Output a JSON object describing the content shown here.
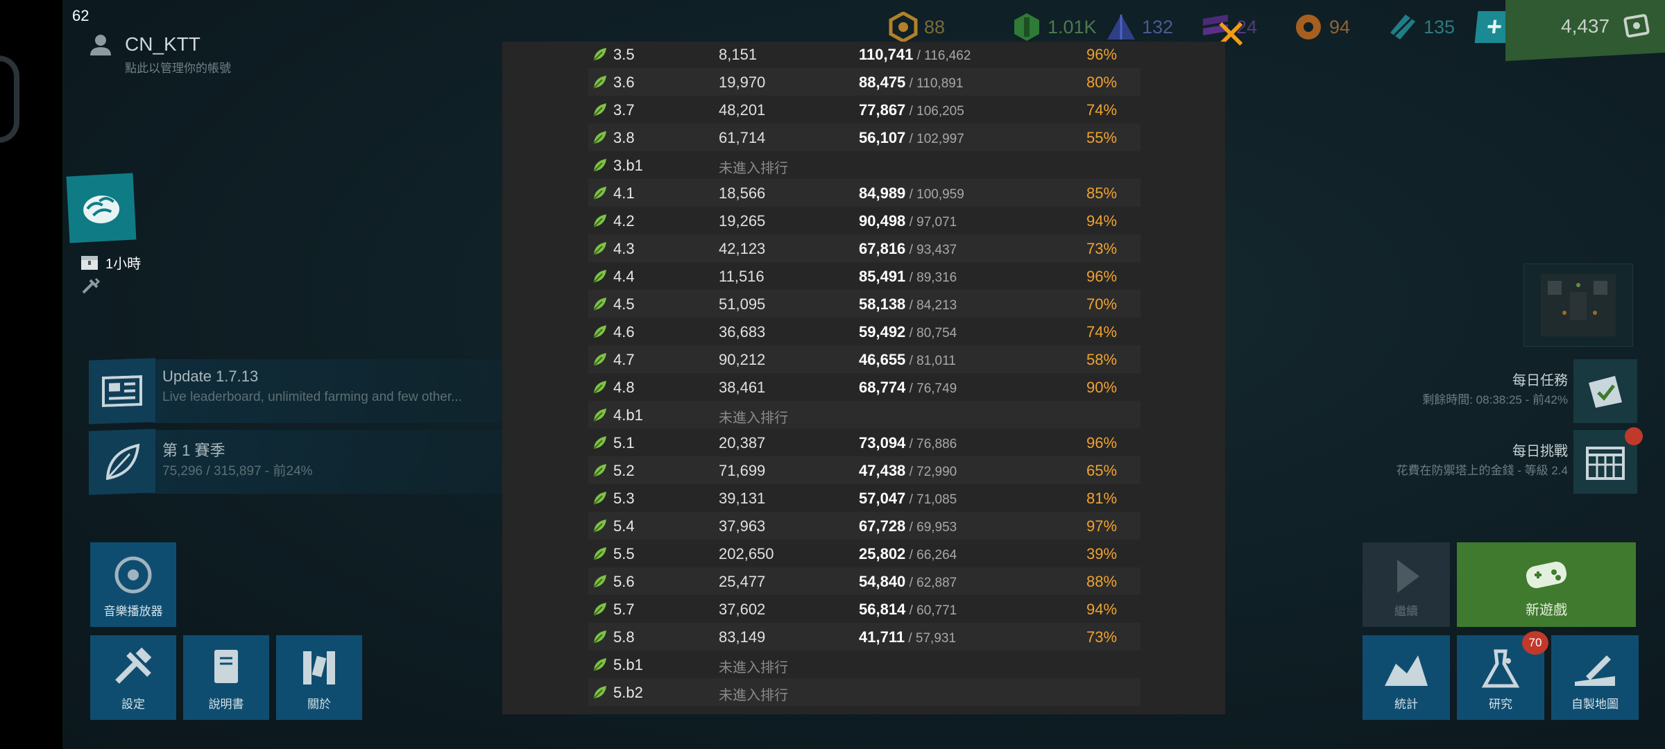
{
  "fps": "62",
  "profile": {
    "name": "CN_KTT",
    "hint": "點此以管理你的帳號"
  },
  "resources": [
    {
      "icon": "coin-hex-icon",
      "value": "88",
      "color": "#b2802a"
    },
    {
      "icon": "green-crystal-icon",
      "value": "1.01K",
      "color": "#3f8f46"
    },
    {
      "icon": "blue-pyramid-icon",
      "value": "132",
      "color": "#3a4f9a"
    },
    {
      "icon": "purple-stack-icon",
      "value": "24",
      "color": "#5a2f8a"
    },
    {
      "icon": "orange-star-icon",
      "value": "94",
      "color": "#b36a21"
    },
    {
      "icon": "teal-prism-icon",
      "value": "135",
      "color": "#1f7f88"
    }
  ],
  "money": "4,437",
  "timer": "1小時",
  "news": [
    {
      "title": "Update 1.7.13",
      "sub": "Live leaderboard, unlimited farming and few other..."
    },
    {
      "title": "第 1 賽季",
      "sub": "75,296 / 315,897 - 前24%"
    }
  ],
  "left_buttons": {
    "music": "音樂播放器",
    "settings": "設定",
    "manual": "說明書",
    "about": "關於"
  },
  "daily_quest": {
    "title": "每日任務",
    "sub": "剩餘時間: 08:38:25 - 前42%"
  },
  "daily_challenge": {
    "title": "每日挑戰",
    "sub": "花費在防禦塔上的金錢 - 等級 2.4"
  },
  "right_buttons": {
    "continue": "繼續",
    "new_game": "新遊戲",
    "stats": "統計",
    "research": "研究",
    "custom_map": "自製地圖",
    "research_badge": "70"
  },
  "leaderboard": [
    {
      "level": "3.5",
      "rank": "8,151",
      "score": "110,741",
      "total": " / 116,462",
      "pct": "96%"
    },
    {
      "level": "3.6",
      "rank": "19,970",
      "score": "88,475",
      "total": " / 110,891",
      "pct": "80%"
    },
    {
      "level": "3.7",
      "rank": "48,201",
      "score": "77,867",
      "total": " / 106,205",
      "pct": "74%"
    },
    {
      "level": "3.8",
      "rank": "61,714",
      "score": "56,107",
      "total": " / 102,997",
      "pct": "55%"
    },
    {
      "level": "3.b1",
      "rank": "未進入排行",
      "score": "",
      "total": "",
      "pct": ""
    },
    {
      "level": "4.1",
      "rank": "18,566",
      "score": "84,989",
      "total": " / 100,959",
      "pct": "85%"
    },
    {
      "level": "4.2",
      "rank": "19,265",
      "score": "90,498",
      "total": " / 97,071",
      "pct": "94%"
    },
    {
      "level": "4.3",
      "rank": "42,123",
      "score": "67,816",
      "total": " / 93,437",
      "pct": "73%"
    },
    {
      "level": "4.4",
      "rank": "11,516",
      "score": "85,491",
      "total": " / 89,316",
      "pct": "96%"
    },
    {
      "level": "4.5",
      "rank": "51,095",
      "score": "58,138",
      "total": " / 84,213",
      "pct": "70%"
    },
    {
      "level": "4.6",
      "rank": "36,683",
      "score": "59,492",
      "total": " / 80,754",
      "pct": "74%"
    },
    {
      "level": "4.7",
      "rank": "90,212",
      "score": "46,655",
      "total": " / 81,011",
      "pct": "58%"
    },
    {
      "level": "4.8",
      "rank": "38,461",
      "score": "68,774",
      "total": " / 76,749",
      "pct": "90%"
    },
    {
      "level": "4.b1",
      "rank": "未進入排行",
      "score": "",
      "total": "",
      "pct": ""
    },
    {
      "level": "5.1",
      "rank": "20,387",
      "score": "73,094",
      "total": " / 76,886",
      "pct": "96%"
    },
    {
      "level": "5.2",
      "rank": "71,699",
      "score": "47,438",
      "total": " / 72,990",
      "pct": "65%"
    },
    {
      "level": "5.3",
      "rank": "39,131",
      "score": "57,047",
      "total": " / 71,085",
      "pct": "81%"
    },
    {
      "level": "5.4",
      "rank": "37,963",
      "score": "67,728",
      "total": " / 69,953",
      "pct": "97%"
    },
    {
      "level": "5.5",
      "rank": "202,650",
      "score": "25,802",
      "total": " / 66,264",
      "pct": "39%"
    },
    {
      "level": "5.6",
      "rank": "25,477",
      "score": "54,840",
      "total": " / 62,887",
      "pct": "88%"
    },
    {
      "level": "5.7",
      "rank": "37,602",
      "score": "56,814",
      "total": " / 60,771",
      "pct": "94%"
    },
    {
      "level": "5.8",
      "rank": "83,149",
      "score": "41,711",
      "total": " / 57,931",
      "pct": "73%"
    },
    {
      "level": "5.b1",
      "rank": "未進入排行",
      "score": "",
      "total": "",
      "pct": ""
    },
    {
      "level": "5.b2",
      "rank": "未進入排行",
      "score": "",
      "total": "",
      "pct": ""
    }
  ]
}
